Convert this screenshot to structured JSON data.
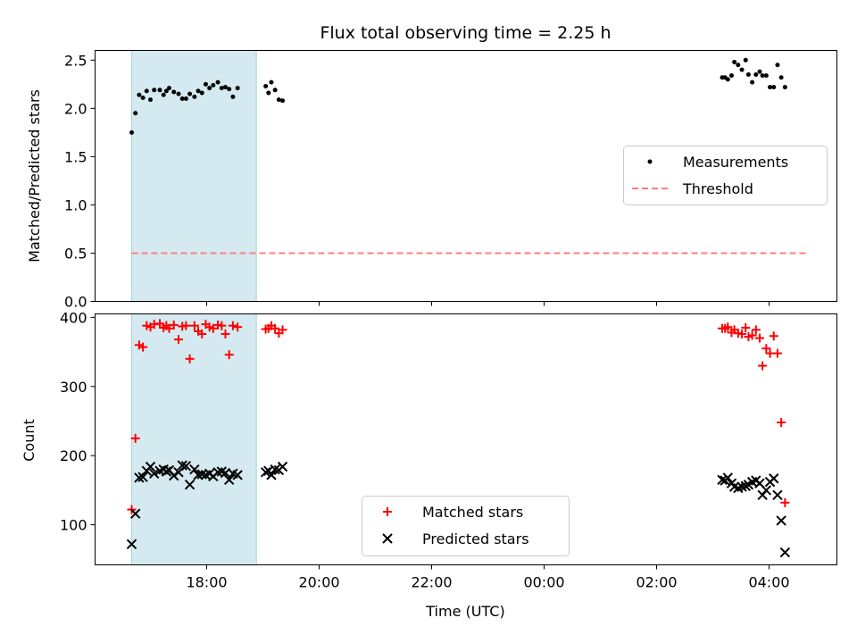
{
  "chart_data": [
    {
      "type": "scatter",
      "title": "Flux total observing time = 2.25 h",
      "xlabel": "",
      "ylabel": "Matched/Predicted stars",
      "ylim": [
        0,
        2.6
      ],
      "yticks": [
        "0.0",
        "0.5",
        "1.0",
        "1.5",
        "2.0",
        "2.5"
      ],
      "legend": {
        "position": "center-right",
        "entries": [
          "Measurements",
          "Threshold"
        ]
      },
      "shaded_span": {
        "from": "16:40",
        "to": "18:53",
        "color": "#d4eaf0"
      },
      "threshold": {
        "name": "Threshold",
        "value": 0.5,
        "from": "16:40",
        "to": "04:40",
        "color": "#ff7f7f"
      },
      "series": [
        {
          "name": "Measurements",
          "color": "#000000",
          "points": [
            [
              "16:40",
              1.75
            ],
            [
              "16:44",
              1.95
            ],
            [
              "16:48",
              2.14
            ],
            [
              "16:52",
              2.11
            ],
            [
              "16:56",
              2.18
            ],
            [
              "17:00",
              2.09
            ],
            [
              "17:04",
              2.19
            ],
            [
              "17:10",
              2.19
            ],
            [
              "17:14",
              2.14
            ],
            [
              "17:17",
              2.18
            ],
            [
              "17:20",
              2.21
            ],
            [
              "17:25",
              2.17
            ],
            [
              "17:30",
              2.15
            ],
            [
              "17:34",
              2.1
            ],
            [
              "17:38",
              2.1
            ],
            [
              "17:42",
              2.15
            ],
            [
              "17:47",
              2.12
            ],
            [
              "17:51",
              2.18
            ],
            [
              "17:55",
              2.16
            ],
            [
              "17:59",
              2.25
            ],
            [
              "18:03",
              2.21
            ],
            [
              "18:07",
              2.24
            ],
            [
              "18:12",
              2.27
            ],
            [
              "18:16",
              2.21
            ],
            [
              "18:20",
              2.22
            ],
            [
              "18:24",
              2.2
            ],
            [
              "18:28",
              2.12
            ],
            [
              "18:33",
              2.21
            ],
            [
              "19:03",
              2.23
            ],
            [
              "19:06",
              2.16
            ],
            [
              "19:09",
              2.27
            ],
            [
              "19:13",
              2.19
            ],
            [
              "19:17",
              2.09
            ],
            [
              "19:21",
              2.08
            ],
            [
              "03:10",
              2.32
            ],
            [
              "03:13",
              2.32
            ],
            [
              "03:16",
              2.3
            ],
            [
              "03:20",
              2.34
            ],
            [
              "03:23",
              2.48
            ],
            [
              "03:27",
              2.45
            ],
            [
              "03:31",
              2.4
            ],
            [
              "03:35",
              2.5
            ],
            [
              "03:38",
              2.35
            ],
            [
              "03:42",
              2.27
            ],
            [
              "03:46",
              2.35
            ],
            [
              "03:50",
              2.38
            ],
            [
              "03:53",
              2.34
            ],
            [
              "03:57",
              2.34
            ],
            [
              "04:01",
              2.22
            ],
            [
              "04:05",
              2.22
            ],
            [
              "04:09",
              2.45
            ],
            [
              "04:13",
              2.32
            ],
            [
              "04:17",
              2.22
            ]
          ]
        }
      ]
    },
    {
      "type": "scatter",
      "title": "",
      "xlabel": "Time (UTC)",
      "ylabel": "Count",
      "ylim": [
        42,
        405
      ],
      "yticks": [
        "100",
        "200",
        "300",
        "400"
      ],
      "xticks": [
        "18:00",
        "20:00",
        "22:00",
        "00:00",
        "02:00",
        "04:00"
      ],
      "legend": {
        "position": "lower-center",
        "entries": [
          "Matched stars",
          "Predicted stars"
        ]
      },
      "shaded_span": {
        "from": "16:40",
        "to": "18:53",
        "color": "#d4eaf0"
      },
      "series": [
        {
          "name": "Matched stars",
          "marker": "+",
          "color": "#ff0000",
          "points": [
            [
              "16:40",
              122
            ],
            [
              "16:44",
              225
            ],
            [
              "16:48",
              360
            ],
            [
              "16:52",
              357
            ],
            [
              "16:56",
              388
            ],
            [
              "17:00",
              386
            ],
            [
              "17:04",
              390
            ],
            [
              "17:10",
              391
            ],
            [
              "17:14",
              385
            ],
            [
              "17:17",
              388
            ],
            [
              "17:20",
              384
            ],
            [
              "17:25",
              389
            ],
            [
              "17:30",
              368
            ],
            [
              "17:34",
              387
            ],
            [
              "17:38",
              388
            ],
            [
              "17:42",
              340
            ],
            [
              "17:47",
              388
            ],
            [
              "17:51",
              380
            ],
            [
              "17:55",
              376
            ],
            [
              "17:59",
              390
            ],
            [
              "18:03",
              386
            ],
            [
              "18:07",
              384
            ],
            [
              "18:12",
              389
            ],
            [
              "18:16",
              388
            ],
            [
              "18:20",
              376
            ],
            [
              "18:24",
              346
            ],
            [
              "18:28",
              388
            ],
            [
              "18:33",
              386
            ],
            [
              "19:03",
              383
            ],
            [
              "19:06",
              384
            ],
            [
              "19:09",
              388
            ],
            [
              "19:13",
              384
            ],
            [
              "19:17",
              377
            ],
            [
              "19:21",
              382
            ],
            [
              "03:10",
              384
            ],
            [
              "03:13",
              384
            ],
            [
              "03:16",
              386
            ],
            [
              "03:20",
              378
            ],
            [
              "03:23",
              382
            ],
            [
              "03:27",
              377
            ],
            [
              "03:31",
              376
            ],
            [
              "03:35",
              385
            ],
            [
              "03:38",
              372
            ],
            [
              "03:42",
              374
            ],
            [
              "03:46",
              382
            ],
            [
              "03:50",
              370
            ],
            [
              "03:53",
              330
            ],
            [
              "03:57",
              355
            ],
            [
              "04:01",
              348
            ],
            [
              "04:05",
              373
            ],
            [
              "04:09",
              348
            ],
            [
              "04:13",
              248
            ],
            [
              "04:17",
              132
            ]
          ]
        },
        {
          "name": "Predicted stars",
          "marker": "x",
          "color": "#000000",
          "points": [
            [
              "16:40",
              72
            ],
            [
              "16:44",
              116
            ],
            [
              "16:48",
              168
            ],
            [
              "16:52",
              169
            ],
            [
              "16:56",
              178
            ],
            [
              "17:00",
              184
            ],
            [
              "17:04",
              174
            ],
            [
              "17:10",
              178
            ],
            [
              "17:14",
              180
            ],
            [
              "17:17",
              177
            ],
            [
              "17:20",
              179
            ],
            [
              "17:25",
              171
            ],
            [
              "17:30",
              176
            ],
            [
              "17:34",
              186
            ],
            [
              "17:38",
              185
            ],
            [
              "17:42",
              158
            ],
            [
              "17:47",
              180
            ],
            [
              "17:51",
              172
            ],
            [
              "17:55",
              173
            ],
            [
              "17:59",
              172
            ],
            [
              "18:03",
              174
            ],
            [
              "18:07",
              170
            ],
            [
              "18:12",
              176
            ],
            [
              "18:16",
              177
            ],
            [
              "18:20",
              175
            ],
            [
              "18:24",
              165
            ],
            [
              "18:28",
              174
            ],
            [
              "18:33",
              172
            ],
            [
              "19:03",
              176
            ],
            [
              "19:06",
              178
            ],
            [
              "19:09",
              172
            ],
            [
              "19:13",
              180
            ],
            [
              "19:17",
              179
            ],
            [
              "19:21",
              184
            ],
            [
              "03:10",
              165
            ],
            [
              "03:13",
              164
            ],
            [
              "03:16",
              168
            ],
            [
              "03:20",
              160
            ],
            [
              "03:23",
              155
            ],
            [
              "03:27",
              153
            ],
            [
              "03:31",
              155
            ],
            [
              "03:35",
              156
            ],
            [
              "03:38",
              158
            ],
            [
              "03:42",
              162
            ],
            [
              "03:46",
              164
            ],
            [
              "03:50",
              160
            ],
            [
              "03:53",
              143
            ],
            [
              "03:57",
              150
            ],
            [
              "04:01",
              162
            ],
            [
              "04:05",
              167
            ],
            [
              "04:09",
              143
            ],
            [
              "04:13",
              106
            ],
            [
              "04:17",
              60
            ]
          ]
        }
      ]
    }
  ]
}
